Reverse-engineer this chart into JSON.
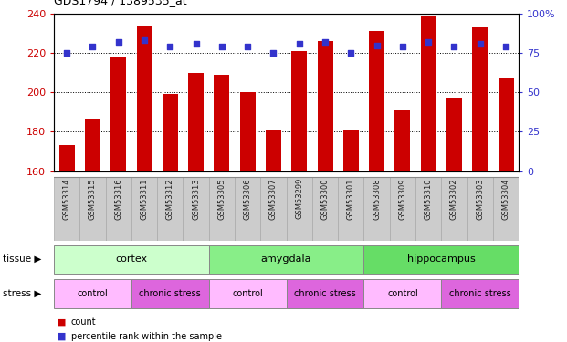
{
  "title": "GDS1794 / 1389535_at",
  "samples": [
    "GSM53314",
    "GSM53315",
    "GSM53316",
    "GSM53311",
    "GSM53312",
    "GSM53313",
    "GSM53305",
    "GSM53306",
    "GSM53307",
    "GSM53299",
    "GSM53300",
    "GSM53301",
    "GSM53308",
    "GSM53309",
    "GSM53310",
    "GSM53302",
    "GSM53303",
    "GSM53304"
  ],
  "bar_values": [
    173,
    186,
    218,
    234,
    199,
    210,
    209,
    200,
    181,
    221,
    226,
    181,
    231,
    191,
    239,
    197,
    233,
    207
  ],
  "dot_values": [
    75,
    79,
    82,
    83,
    79,
    81,
    79,
    79,
    75,
    81,
    82,
    75,
    80,
    79,
    82,
    79,
    81,
    79
  ],
  "bar_color": "#cc0000",
  "dot_color": "#3333cc",
  "ylim_left": [
    160,
    240
  ],
  "ylim_right": [
    0,
    100
  ],
  "yticks_left": [
    160,
    180,
    200,
    220,
    240
  ],
  "yticks_right": [
    0,
    25,
    50,
    75,
    100
  ],
  "ytick_labels_right": [
    "0",
    "25",
    "50",
    "75",
    "100%"
  ],
  "tissue_groups": [
    {
      "label": "cortex",
      "start": 0,
      "end": 6,
      "color": "#ccffcc"
    },
    {
      "label": "amygdala",
      "start": 6,
      "end": 12,
      "color": "#88ee88"
    },
    {
      "label": "hippocampus",
      "start": 12,
      "end": 18,
      "color": "#66dd66"
    }
  ],
  "stress_groups": [
    {
      "label": "control",
      "start": 0,
      "end": 3,
      "color": "#ffbbff"
    },
    {
      "label": "chronic stress",
      "start": 3,
      "end": 6,
      "color": "#dd66dd"
    },
    {
      "label": "control",
      "start": 6,
      "end": 9,
      "color": "#ffbbff"
    },
    {
      "label": "chronic stress",
      "start": 9,
      "end": 12,
      "color": "#dd66dd"
    },
    {
      "label": "control",
      "start": 12,
      "end": 15,
      "color": "#ffbbff"
    },
    {
      "label": "chronic stress",
      "start": 15,
      "end": 18,
      "color": "#dd66dd"
    }
  ],
  "legend_items": [
    {
      "label": "count",
      "color": "#cc0000"
    },
    {
      "label": "percentile rank within the sample",
      "color": "#3333cc"
    }
  ],
  "tissue_label": "tissue",
  "stress_label": "stress",
  "bg_color": "#ffffff",
  "plot_bg_color": "#ffffff",
  "tick_bg_color": "#cccccc",
  "left_tick_color": "#cc0000",
  "right_tick_color": "#3333cc"
}
